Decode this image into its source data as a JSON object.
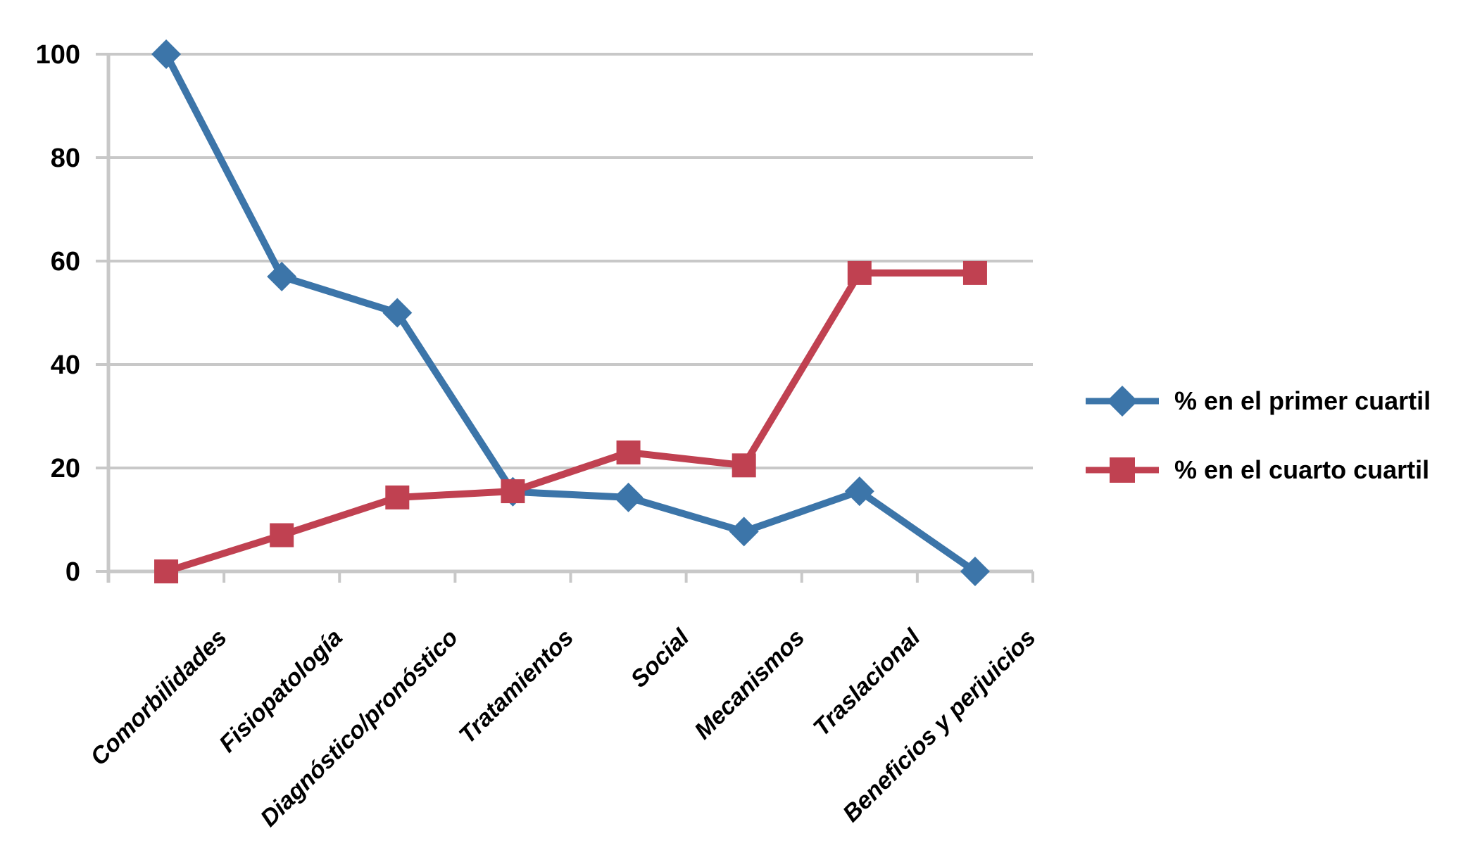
{
  "chart_data": {
    "type": "line",
    "title": "",
    "xlabel": "",
    "ylabel": "",
    "categories": [
      "Comorbilidades",
      "Fisiopatología",
      "Diagnóstico/pronóstico",
      "Tratamientos",
      "Social",
      "Mecanismos",
      "Traslacional",
      "Beneficios y perjuicios"
    ],
    "series": [
      {
        "name": "% en el primer cuartil",
        "color": "#3C75A9",
        "marker": "diamond",
        "values": [
          100,
          57,
          50,
          15.4,
          14.3,
          7.7,
          15.5,
          0
        ]
      },
      {
        "name": "% en el cuarto cuartil",
        "color": "#C04151",
        "marker": "square",
        "values": [
          0,
          7,
          14.3,
          15.5,
          23,
          20.5,
          57.7,
          57.7
        ]
      }
    ],
    "y_ticks": [
      0,
      20,
      40,
      60,
      80,
      100
    ],
    "ylim": [
      0,
      100
    ],
    "grid": true,
    "legend_position": "right"
  },
  "colors": {
    "background": "#FFFFFF",
    "grid": "#C8C8C8",
    "axis": "#C8C8C8",
    "text": "#000000",
    "series_blue": "#3C75A9",
    "series_red": "#C04151"
  }
}
